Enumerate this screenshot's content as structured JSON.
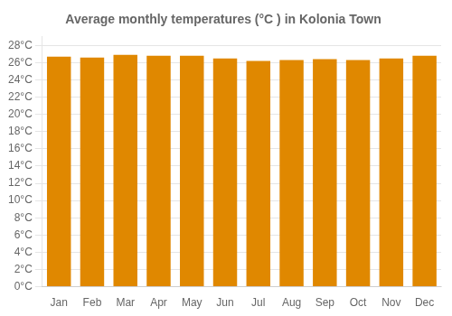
{
  "chart_data": {
    "type": "bar",
    "title": "Average monthly temperatures (°C ) in Kolonia Town",
    "categories": [
      "Jan",
      "Feb",
      "Mar",
      "Apr",
      "May",
      "Jun",
      "Jul",
      "Aug",
      "Sep",
      "Oct",
      "Nov",
      "Dec"
    ],
    "values": [
      26.7,
      26.6,
      26.9,
      26.8,
      26.8,
      26.5,
      26.2,
      26.3,
      26.4,
      26.3,
      26.5,
      26.8
    ],
    "color": "#E08800",
    "ylim": [
      0,
      29
    ],
    "yticks": [
      {
        "value": 0,
        "label": "0°C"
      },
      {
        "value": 2,
        "label": "2°C"
      },
      {
        "value": 4,
        "label": "4°C"
      },
      {
        "value": 6,
        "label": "6°C"
      },
      {
        "value": 8,
        "label": "8°C"
      },
      {
        "value": 10,
        "label": "10°C"
      },
      {
        "value": 12,
        "label": "12°C"
      },
      {
        "value": 14,
        "label": "14°C"
      },
      {
        "value": 16,
        "label": "16°C"
      },
      {
        "value": 18,
        "label": "18°C"
      },
      {
        "value": 20,
        "label": "20°C"
      },
      {
        "value": 22,
        "label": "22°C"
      },
      {
        "value": 24,
        "label": "24°C"
      },
      {
        "value": 26,
        "label": "26°C"
      },
      {
        "value": 28,
        "label": "28°C"
      }
    ],
    "grid": true
  }
}
